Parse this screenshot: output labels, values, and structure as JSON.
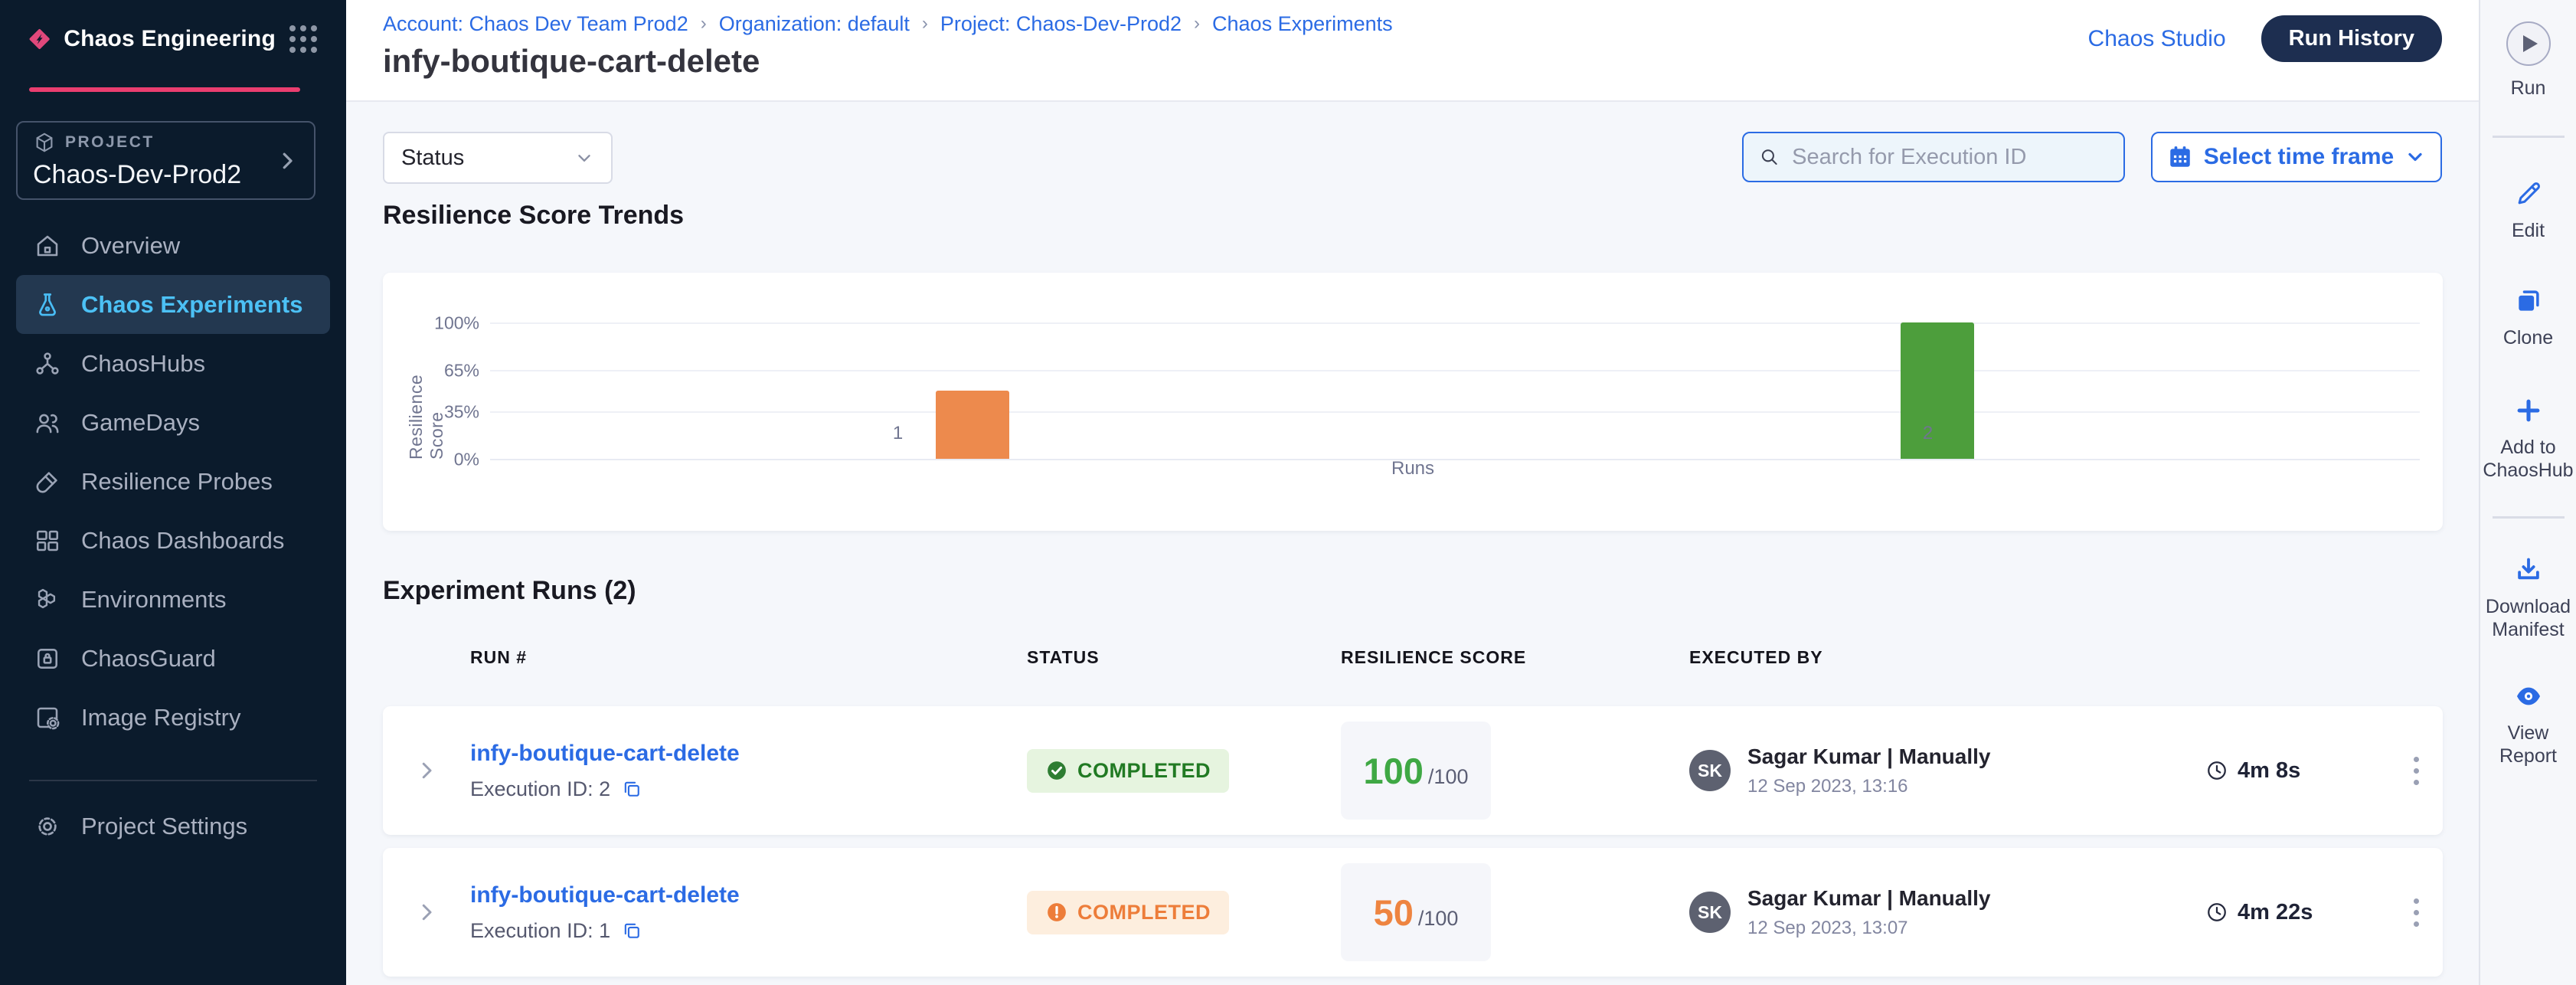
{
  "app": {
    "title": "Chaos Engineering"
  },
  "topbar": {
    "breadcrumbs": [
      "Account: Chaos Dev Team Prod2",
      "Organization: default",
      "Project: Chaos-Dev-Prod2",
      "Chaos Experiments"
    ],
    "page_title": "infy-boutique-cart-delete",
    "chaos_studio_link": "Chaos Studio",
    "run_history_button": "Run History"
  },
  "sidebar": {
    "project_label": "PROJECT",
    "project_name": "Chaos-Dev-Prod2",
    "items": [
      {
        "label": "Overview",
        "active": false
      },
      {
        "label": "Chaos Experiments",
        "active": true
      },
      {
        "label": "ChaosHubs",
        "active": false
      },
      {
        "label": "GameDays",
        "active": false
      },
      {
        "label": "Resilience Probes",
        "active": false
      },
      {
        "label": "Chaos Dashboards",
        "active": false
      },
      {
        "label": "Environments",
        "active": false
      },
      {
        "label": "ChaosGuard",
        "active": false
      },
      {
        "label": "Image Registry",
        "active": false
      }
    ],
    "settings_label": "Project Settings"
  },
  "filters": {
    "status_dropdown_label": "Status",
    "search_placeholder": "Search for Execution ID",
    "time_frame_label": "Select time frame"
  },
  "chart_section": {
    "title": "Resilience Score Trends"
  },
  "chart_data": {
    "type": "bar",
    "title": "Resilience Score Trends",
    "categories": [
      "1",
      "2"
    ],
    "values": [
      50,
      100
    ],
    "colors": [
      "#ed8a4d",
      "#4d9e3c"
    ],
    "xlabel": "Runs",
    "ylabel": "Resilience Score",
    "ylim": [
      0,
      100
    ],
    "ytick_labels": [
      "0%",
      "35%",
      "65%",
      "100%"
    ],
    "ytick_values": [
      0,
      35,
      65,
      100
    ],
    "grid": true,
    "legend": false
  },
  "runs_section": {
    "title": "Experiment Runs (2)",
    "columns": [
      "RUN #",
      "STATUS",
      "RESILIENCE SCORE",
      "EXECUTED BY"
    ],
    "rows": [
      {
        "name": "infy-boutique-cart-delete",
        "execution_label": "Execution ID: 2",
        "status": "COMPLETED",
        "status_variant": "success",
        "score": "100",
        "score_denominator": "/100",
        "score_color": "#3fa844",
        "executed_by_initials": "SK",
        "executed_by": "Sagar Kumar | Manually",
        "executed_at": "12 Sep 2023, 13:16",
        "duration": "4m 8s"
      },
      {
        "name": "infy-boutique-cart-delete",
        "execution_label": "Execution ID: 1",
        "status": "COMPLETED",
        "status_variant": "warning",
        "score": "50",
        "score_denominator": "/100",
        "score_color": "#ee8440",
        "executed_by_initials": "SK",
        "executed_by": "Sagar Kumar | Manually",
        "executed_at": "12 Sep 2023, 13:07",
        "duration": "4m 22s"
      }
    ]
  },
  "right_rail": {
    "run_label": "Run",
    "actions": [
      {
        "label": "Edit"
      },
      {
        "label": "Clone"
      },
      {
        "label": "Add to ChaosHub"
      },
      {
        "label": "Download Manifest"
      },
      {
        "label": "View Report"
      }
    ]
  },
  "colors": {
    "accent_blue": "#2b6be4",
    "brand_pink": "#ea3e6f",
    "sidebar_bg": "#0b1b2c",
    "success_green": "#217a23",
    "warning_orange": "#ed7d3a",
    "bar_orange": "#ed8a4d",
    "bar_green": "#4d9e3c"
  }
}
